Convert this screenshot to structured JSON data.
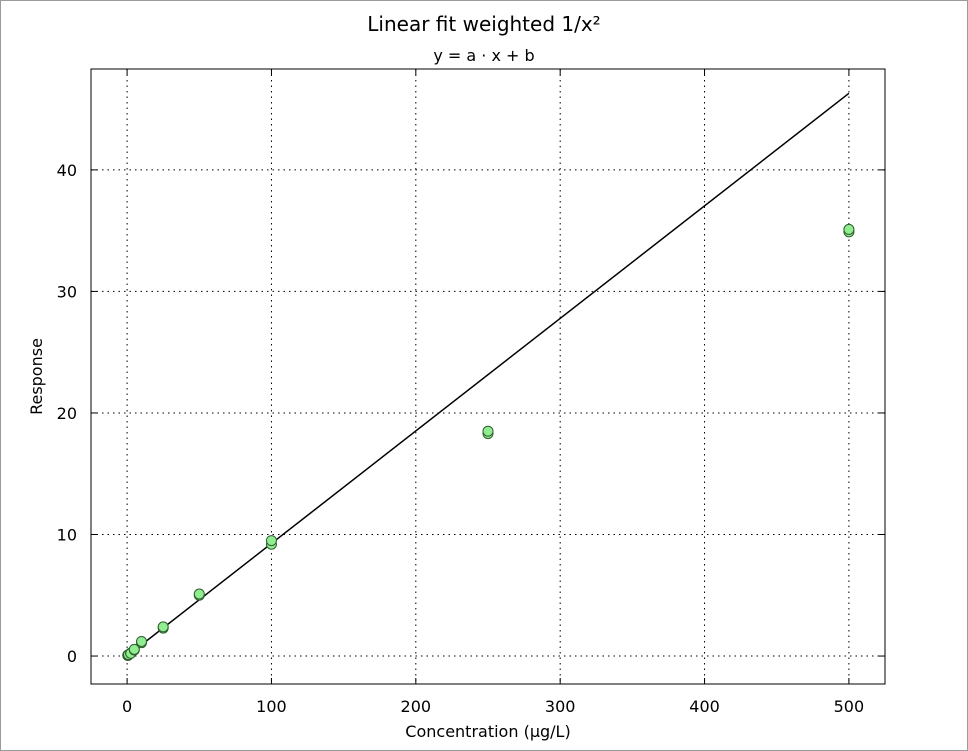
{
  "chart_data": {
    "type": "scatter",
    "title": "Linear fit weighted 1/x²",
    "subtitle": "y = a · x + b",
    "xlabel": "Concentration (µg/L)",
    "ylabel": "Response",
    "xlim": [
      -25,
      525
    ],
    "ylim": [
      -2.3,
      48.3
    ],
    "xticks": [
      0,
      100,
      200,
      300,
      400,
      500
    ],
    "yticks": [
      0,
      10,
      20,
      30,
      40
    ],
    "grid": true,
    "points": [
      {
        "x": 0.5,
        "y": 0.05
      },
      {
        "x": 0.5,
        "y": 0.08
      },
      {
        "x": 1,
        "y": 0.1
      },
      {
        "x": 1,
        "y": 0.12
      },
      {
        "x": 2.5,
        "y": 0.25
      },
      {
        "x": 2.5,
        "y": 0.22
      },
      {
        "x": 5,
        "y": 0.5
      },
      {
        "x": 5,
        "y": 0.55
      },
      {
        "x": 10,
        "y": 1.1
      },
      {
        "x": 10,
        "y": 1.2
      },
      {
        "x": 25,
        "y": 2.3
      },
      {
        "x": 25,
        "y": 2.4
      },
      {
        "x": 50,
        "y": 5.0
      },
      {
        "x": 50,
        "y": 5.1
      },
      {
        "x": 100,
        "y": 9.2
      },
      {
        "x": 100,
        "y": 9.5
      },
      {
        "x": 250,
        "y": 18.3
      },
      {
        "x": 250,
        "y": 18.5
      },
      {
        "x": 500,
        "y": 34.9
      },
      {
        "x": 500,
        "y": 35.1
      }
    ],
    "fit_line": {
      "x": [
        0,
        500
      ],
      "y": [
        0.0,
        46.3
      ]
    },
    "marker_color": "#90ee90",
    "marker_edge_color": "#2e5e2e",
    "line_color": "#000000"
  }
}
